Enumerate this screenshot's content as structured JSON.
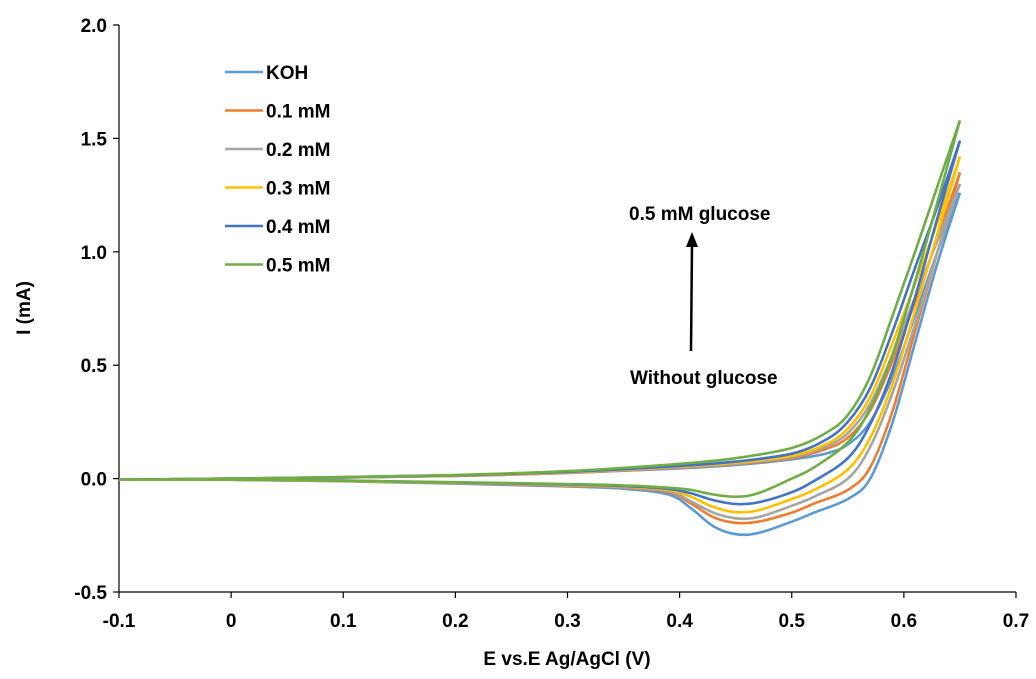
{
  "chart_data": {
    "type": "line",
    "title": "",
    "xlabel": "E vs.E Ag/AgCl (V)",
    "ylabel": "I (mA)",
    "xlim": [
      -0.1,
      0.7
    ],
    "ylim": [
      -0.5,
      2.0
    ],
    "xticks": [
      "-0.1",
      "0",
      "0.1",
      "0.2",
      "0.3",
      "0.4",
      "0.5",
      "0.6",
      "0.7"
    ],
    "yticks": [
      "-0.5",
      "0.0",
      "0.5",
      "1.0",
      "1.5",
      "2.0"
    ],
    "grid": false,
    "legend_position": "top-left",
    "annotations": {
      "top": "0.5 mM glucose",
      "bottom": "Without glucose"
    },
    "series": [
      {
        "name": "KOH",
        "color": "#5b9bd5",
        "forward": [
          [
            -0.1,
            -0.005
          ],
          [
            0.0,
            0.0
          ],
          [
            0.1,
            0.005
          ],
          [
            0.2,
            0.012
          ],
          [
            0.3,
            0.025
          ],
          [
            0.4,
            0.045
          ],
          [
            0.45,
            0.06
          ],
          [
            0.5,
            0.085
          ],
          [
            0.53,
            0.11
          ],
          [
            0.55,
            0.15
          ],
          [
            0.57,
            0.25
          ],
          [
            0.59,
            0.45
          ],
          [
            0.61,
            0.72
          ],
          [
            0.63,
            1.0
          ],
          [
            0.65,
            1.26
          ]
        ],
        "reverse": [
          [
            0.65,
            1.26
          ],
          [
            0.63,
            0.95
          ],
          [
            0.61,
            0.6
          ],
          [
            0.59,
            0.25
          ],
          [
            0.57,
            0.0
          ],
          [
            0.55,
            -0.09
          ],
          [
            0.52,
            -0.15
          ],
          [
            0.5,
            -0.19
          ],
          [
            0.47,
            -0.24
          ],
          [
            0.45,
            -0.245
          ],
          [
            0.43,
            -0.21
          ],
          [
            0.41,
            -0.13
          ],
          [
            0.39,
            -0.07
          ],
          [
            0.35,
            -0.045
          ],
          [
            0.3,
            -0.035
          ],
          [
            0.2,
            -0.022
          ],
          [
            0.1,
            -0.012
          ],
          [
            0.0,
            -0.005
          ],
          [
            -0.1,
            -0.005
          ]
        ]
      },
      {
        "name": "0.1 mM",
        "color": "#ed7d31",
        "forward": [
          [
            -0.1,
            -0.005
          ],
          [
            0.0,
            0.0
          ],
          [
            0.1,
            0.005
          ],
          [
            0.2,
            0.012
          ],
          [
            0.3,
            0.025
          ],
          [
            0.4,
            0.048
          ],
          [
            0.45,
            0.064
          ],
          [
            0.5,
            0.09
          ],
          [
            0.53,
            0.13
          ],
          [
            0.55,
            0.18
          ],
          [
            0.57,
            0.3
          ],
          [
            0.59,
            0.52
          ],
          [
            0.61,
            0.78
          ],
          [
            0.63,
            1.06
          ],
          [
            0.65,
            1.35
          ]
        ],
        "reverse": [
          [
            0.65,
            1.35
          ],
          [
            0.63,
            1.0
          ],
          [
            0.61,
            0.65
          ],
          [
            0.59,
            0.3
          ],
          [
            0.57,
            0.05
          ],
          [
            0.55,
            -0.05
          ],
          [
            0.52,
            -0.11
          ],
          [
            0.5,
            -0.15
          ],
          [
            0.47,
            -0.19
          ],
          [
            0.45,
            -0.195
          ],
          [
            0.43,
            -0.17
          ],
          [
            0.41,
            -0.11
          ],
          [
            0.39,
            -0.06
          ],
          [
            0.35,
            -0.04
          ],
          [
            0.3,
            -0.032
          ],
          [
            0.2,
            -0.02
          ],
          [
            0.1,
            -0.011
          ],
          [
            0.0,
            -0.005
          ],
          [
            -0.1,
            -0.005
          ]
        ]
      },
      {
        "name": "0.2 mM",
        "color": "#a5a5a5",
        "forward": [
          [
            -0.1,
            -0.005
          ],
          [
            0.0,
            0.0
          ],
          [
            0.1,
            0.005
          ],
          [
            0.2,
            0.013
          ],
          [
            0.3,
            0.026
          ],
          [
            0.4,
            0.05
          ],
          [
            0.45,
            0.066
          ],
          [
            0.5,
            0.095
          ],
          [
            0.53,
            0.14
          ],
          [
            0.55,
            0.2
          ],
          [
            0.57,
            0.33
          ],
          [
            0.59,
            0.55
          ],
          [
            0.61,
            0.8
          ],
          [
            0.63,
            1.05
          ],
          [
            0.65,
            1.3
          ]
        ],
        "reverse": [
          [
            0.65,
            1.3
          ],
          [
            0.63,
            1.0
          ],
          [
            0.61,
            0.68
          ],
          [
            0.59,
            0.38
          ],
          [
            0.57,
            0.14
          ],
          [
            0.55,
            0.0
          ],
          [
            0.52,
            -0.08
          ],
          [
            0.5,
            -0.12
          ],
          [
            0.47,
            -0.17
          ],
          [
            0.45,
            -0.175
          ],
          [
            0.43,
            -0.15
          ],
          [
            0.41,
            -0.1
          ],
          [
            0.39,
            -0.055
          ],
          [
            0.35,
            -0.038
          ],
          [
            0.3,
            -0.03
          ],
          [
            0.2,
            -0.019
          ],
          [
            0.1,
            -0.01
          ],
          [
            0.0,
            -0.005
          ],
          [
            -0.1,
            -0.005
          ]
        ]
      },
      {
        "name": "0.3 mM",
        "color": "#ffc000",
        "forward": [
          [
            -0.1,
            -0.005
          ],
          [
            0.0,
            0.0
          ],
          [
            0.1,
            0.006
          ],
          [
            0.2,
            0.014
          ],
          [
            0.3,
            0.028
          ],
          [
            0.4,
            0.053
          ],
          [
            0.45,
            0.07
          ],
          [
            0.5,
            0.1
          ],
          [
            0.53,
            0.15
          ],
          [
            0.55,
            0.22
          ],
          [
            0.57,
            0.36
          ],
          [
            0.59,
            0.6
          ],
          [
            0.61,
            0.86
          ],
          [
            0.63,
            1.13
          ],
          [
            0.65,
            1.42
          ]
        ],
        "reverse": [
          [
            0.65,
            1.42
          ],
          [
            0.63,
            1.08
          ],
          [
            0.61,
            0.74
          ],
          [
            0.59,
            0.42
          ],
          [
            0.57,
            0.18
          ],
          [
            0.55,
            0.04
          ],
          [
            0.52,
            -0.05
          ],
          [
            0.5,
            -0.09
          ],
          [
            0.47,
            -0.14
          ],
          [
            0.45,
            -0.148
          ],
          [
            0.43,
            -0.125
          ],
          [
            0.41,
            -0.08
          ],
          [
            0.39,
            -0.05
          ],
          [
            0.35,
            -0.035
          ],
          [
            0.3,
            -0.028
          ],
          [
            0.2,
            -0.018
          ],
          [
            0.1,
            -0.01
          ],
          [
            0.0,
            -0.005
          ],
          [
            -0.1,
            -0.005
          ]
        ]
      },
      {
        "name": "0.4 mM",
        "color": "#4472c4",
        "forward": [
          [
            -0.1,
            -0.005
          ],
          [
            0.0,
            0.0
          ],
          [
            0.1,
            0.006
          ],
          [
            0.2,
            0.015
          ],
          [
            0.3,
            0.03
          ],
          [
            0.4,
            0.056
          ],
          [
            0.45,
            0.075
          ],
          [
            0.5,
            0.11
          ],
          [
            0.53,
            0.17
          ],
          [
            0.55,
            0.25
          ],
          [
            0.57,
            0.4
          ],
          [
            0.59,
            0.65
          ],
          [
            0.61,
            0.93
          ],
          [
            0.63,
            1.2
          ],
          [
            0.65,
            1.49
          ]
        ],
        "reverse": [
          [
            0.65,
            1.49
          ],
          [
            0.63,
            1.15
          ],
          [
            0.61,
            0.8
          ],
          [
            0.59,
            0.48
          ],
          [
            0.57,
            0.24
          ],
          [
            0.55,
            0.09
          ],
          [
            0.52,
            -0.01
          ],
          [
            0.5,
            -0.06
          ],
          [
            0.47,
            -0.105
          ],
          [
            0.45,
            -0.112
          ],
          [
            0.43,
            -0.095
          ],
          [
            0.41,
            -0.065
          ],
          [
            0.39,
            -0.045
          ],
          [
            0.35,
            -0.033
          ],
          [
            0.3,
            -0.026
          ],
          [
            0.2,
            -0.017
          ],
          [
            0.1,
            -0.009
          ],
          [
            0.0,
            -0.005
          ],
          [
            -0.1,
            -0.005
          ]
        ]
      },
      {
        "name": "0.5 mM",
        "color": "#70ad47",
        "forward": [
          [
            -0.1,
            -0.005
          ],
          [
            0.0,
            0.0
          ],
          [
            0.1,
            0.007
          ],
          [
            0.2,
            0.016
          ],
          [
            0.3,
            0.033
          ],
          [
            0.4,
            0.065
          ],
          [
            0.45,
            0.09
          ],
          [
            0.5,
            0.135
          ],
          [
            0.53,
            0.2
          ],
          [
            0.55,
            0.28
          ],
          [
            0.57,
            0.45
          ],
          [
            0.59,
            0.72
          ],
          [
            0.61,
            1.0
          ],
          [
            0.63,
            1.29
          ],
          [
            0.65,
            1.58
          ]
        ],
        "reverse": [
          [
            0.65,
            1.58
          ],
          [
            0.63,
            1.22
          ],
          [
            0.61,
            0.87
          ],
          [
            0.59,
            0.55
          ],
          [
            0.57,
            0.31
          ],
          [
            0.55,
            0.16
          ],
          [
            0.52,
            0.05
          ],
          [
            0.5,
            0.0
          ],
          [
            0.47,
            -0.065
          ],
          [
            0.45,
            -0.08
          ],
          [
            0.43,
            -0.07
          ],
          [
            0.41,
            -0.05
          ],
          [
            0.39,
            -0.04
          ],
          [
            0.35,
            -0.03
          ],
          [
            0.3,
            -0.024
          ],
          [
            0.2,
            -0.016
          ],
          [
            0.1,
            -0.009
          ],
          [
            0.0,
            -0.005
          ],
          [
            -0.1,
            -0.005
          ]
        ]
      }
    ]
  }
}
